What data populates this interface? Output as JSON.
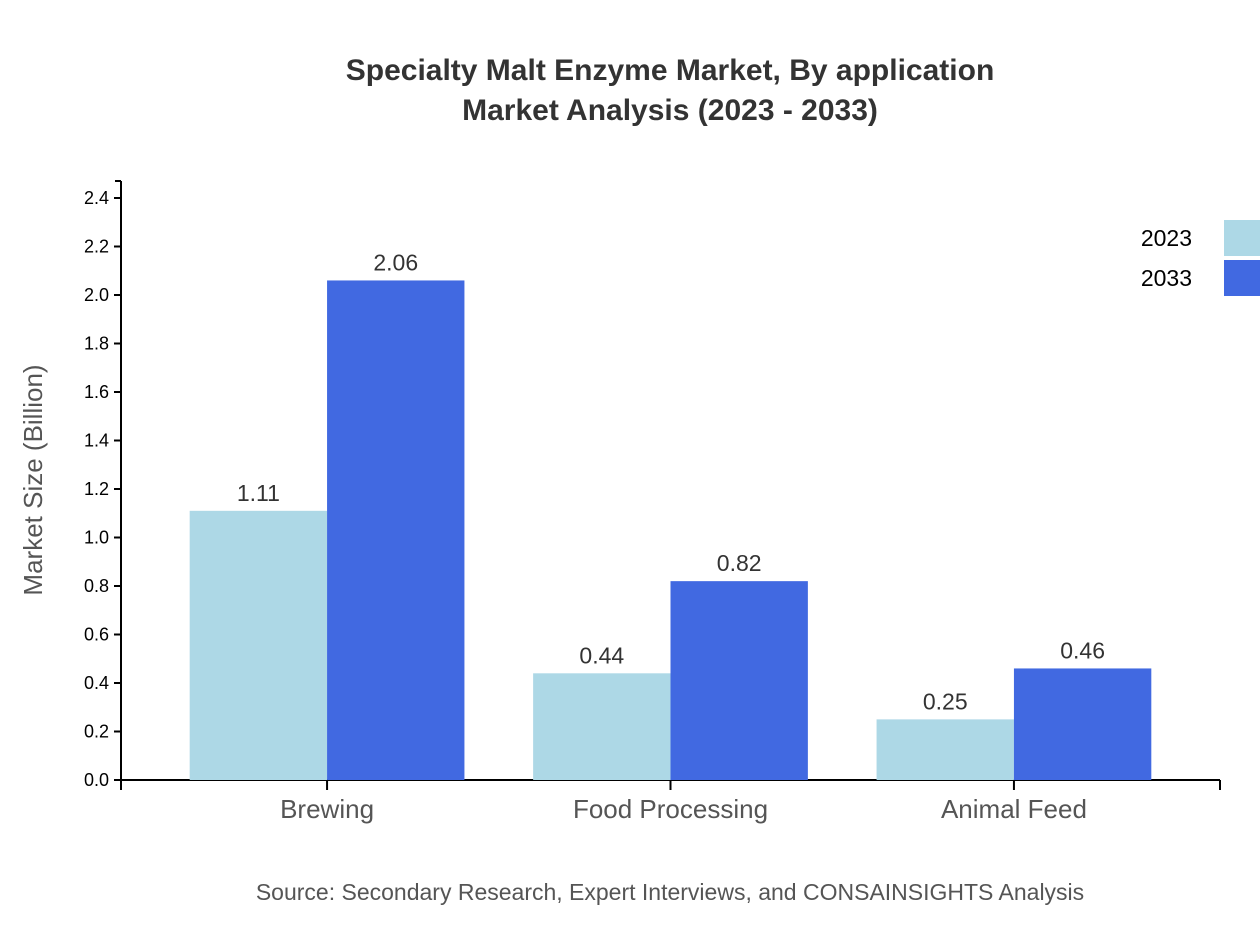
{
  "chart_data": {
    "type": "bar",
    "title": "Specialty Malt Enzyme Market, By application",
    "subtitle": "Market Analysis (2023 - 2033)",
    "xlabel": "",
    "ylabel": "Market Size (Billion)",
    "ylim": [
      0,
      2.4
    ],
    "yticks": [
      "0.0",
      "0.2",
      "0.4",
      "0.6",
      "0.8",
      "1.0",
      "1.2",
      "1.4",
      "1.6",
      "1.8",
      "2.0",
      "2.2",
      "2.4"
    ],
    "categories": [
      "Brewing",
      "Food Processing",
      "Animal Feed"
    ],
    "series": [
      {
        "name": "2023",
        "values": [
          1.11,
          0.44,
          0.25
        ],
        "labels": [
          "1.11",
          "0.44",
          "0.25"
        ],
        "color": "#add8e6"
      },
      {
        "name": "2033",
        "values": [
          2.06,
          0.82,
          0.46
        ],
        "labels": [
          "2.06",
          "0.82",
          "0.46"
        ],
        "color": "#4169e1"
      }
    ],
    "grid": false,
    "legend": "top-right",
    "source": "Source: Secondary Research, Expert Interviews, and CONSAINSIGHTS Analysis"
  }
}
